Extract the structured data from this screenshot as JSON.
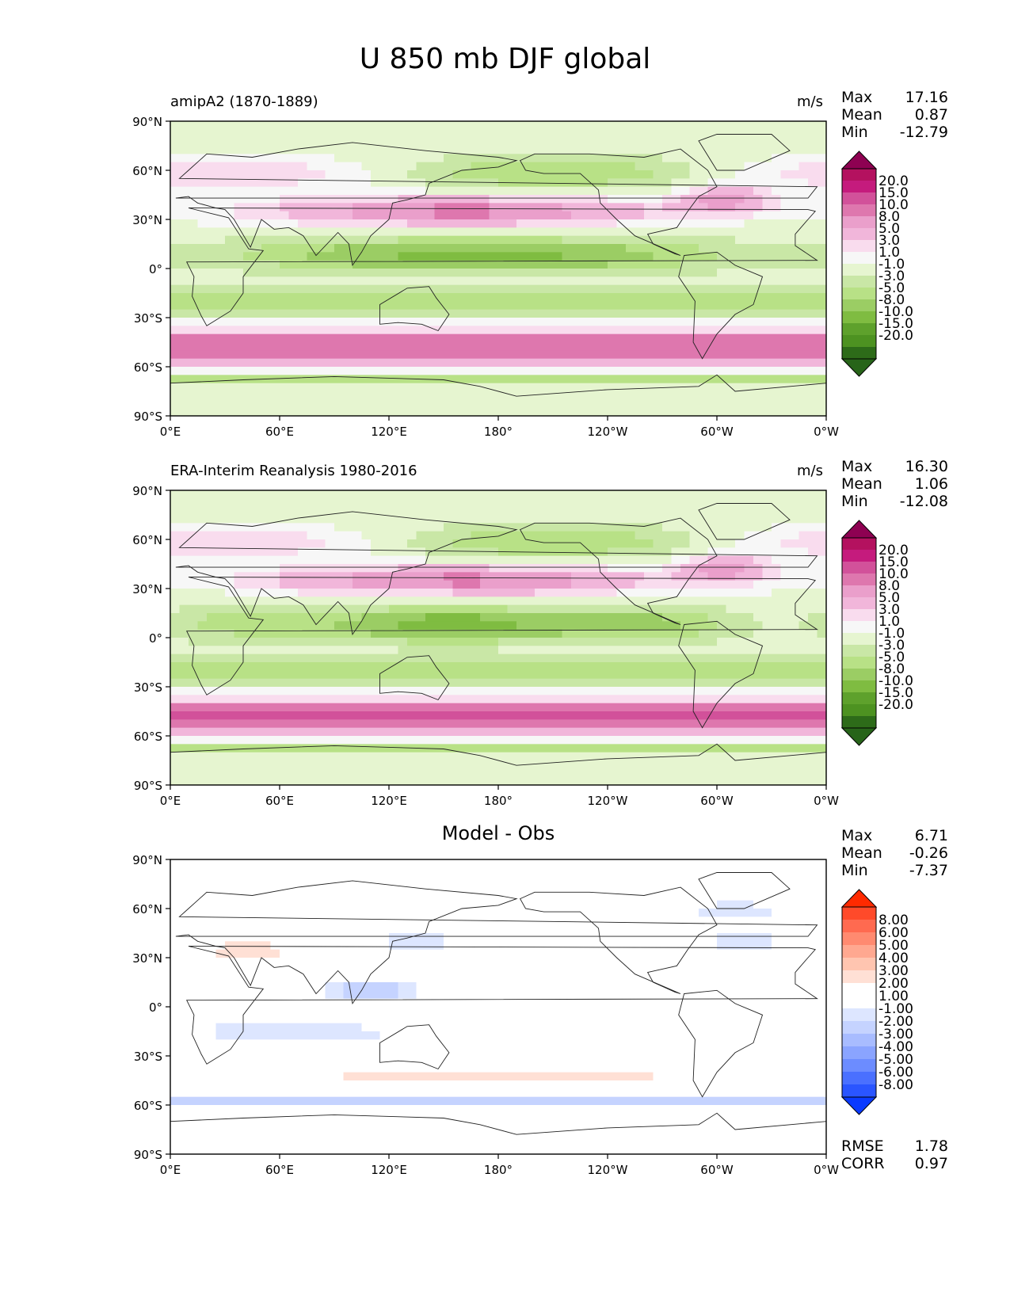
{
  "title": "U 850 mb DJF global",
  "lat_ticks": [
    "90°N",
    "60°N",
    "30°N",
    "0°",
    "30°S",
    "60°S",
    "90°S"
  ],
  "lon_ticks": [
    "0°E",
    "60°E",
    "120°E",
    "180°",
    "120°W",
    "60°W",
    "0°W"
  ],
  "panels": [
    {
      "id": "model",
      "title": "amipA2 (1870-1889)",
      "units": "m/s",
      "stats": [
        {
          "label": "Max",
          "value": "17.16"
        },
        {
          "label": "Mean",
          "value": "0.87"
        },
        {
          "label": "Min",
          "value": "-12.79"
        }
      ],
      "levels": [
        "20.0",
        "15.0",
        "10.0",
        "8.0",
        "5.0",
        "3.0",
        "1.0",
        "-1.0",
        "-3.0",
        "-5.0",
        "-8.0",
        "-10.0",
        "-15.0",
        "-20.0"
      ],
      "colors": [
        "#8e0152",
        "#b4115f",
        "#c51b7d",
        "#d2519a",
        "#de77ae",
        "#ea9fcb",
        "#f1b6da",
        "#f9dcee",
        "#f7f7f7",
        "#e6f5d0",
        "#c9e7a6",
        "#b8e186",
        "#9bcd64",
        "#7fbc41",
        "#5ea12c",
        "#4d9221",
        "#2d6b19",
        "#276419"
      ]
    },
    {
      "id": "obs",
      "title": "ERA-Interim Reanalysis 1980-2016",
      "units": "m/s",
      "stats": [
        {
          "label": "Max",
          "value": "16.30"
        },
        {
          "label": "Mean",
          "value": "1.06"
        },
        {
          "label": "Min",
          "value": "-12.08"
        }
      ],
      "levels": [
        "20.0",
        "15.0",
        "10.0",
        "8.0",
        "5.0",
        "3.0",
        "1.0",
        "-1.0",
        "-3.0",
        "-5.0",
        "-8.0",
        "-10.0",
        "-15.0",
        "-20.0"
      ],
      "colors": [
        "#8e0152",
        "#b4115f",
        "#c51b7d",
        "#d2519a",
        "#de77ae",
        "#ea9fcb",
        "#f1b6da",
        "#f9dcee",
        "#f7f7f7",
        "#e6f5d0",
        "#c9e7a6",
        "#b8e186",
        "#9bcd64",
        "#7fbc41",
        "#5ea12c",
        "#4d9221",
        "#2d6b19",
        "#276419"
      ]
    },
    {
      "id": "diff",
      "title": "Model - Obs",
      "units": "",
      "stats": [
        {
          "label": "Max",
          "value": "6.71"
        },
        {
          "label": "Mean",
          "value": "-0.26"
        },
        {
          "label": "Min",
          "value": "-7.37"
        }
      ],
      "levels": [
        "8.00",
        "6.00",
        "5.00",
        "4.00",
        "3.00",
        "2.00",
        "1.00",
        "-1.00",
        "-2.00",
        "-3.00",
        "-4.00",
        "-5.00",
        "-6.00",
        "-8.00"
      ],
      "colors": [
        "#ff2a00",
        "#ff4a2a",
        "#ff6a50",
        "#ff8a70",
        "#ffa890",
        "#ffc5b0",
        "#ffe0d5",
        "#ffffff",
        "#ffffff",
        "#dde6ff",
        "#c5d3ff",
        "#a8bcff",
        "#8aa4ff",
        "#6c8cff",
        "#4a70ff",
        "#2a55ff",
        "#0a3aff"
      ],
      "metrics": [
        {
          "label": "RMSE",
          "value": "1.78"
        },
        {
          "label": "CORR",
          "value": "0.97"
        }
      ]
    }
  ]
}
